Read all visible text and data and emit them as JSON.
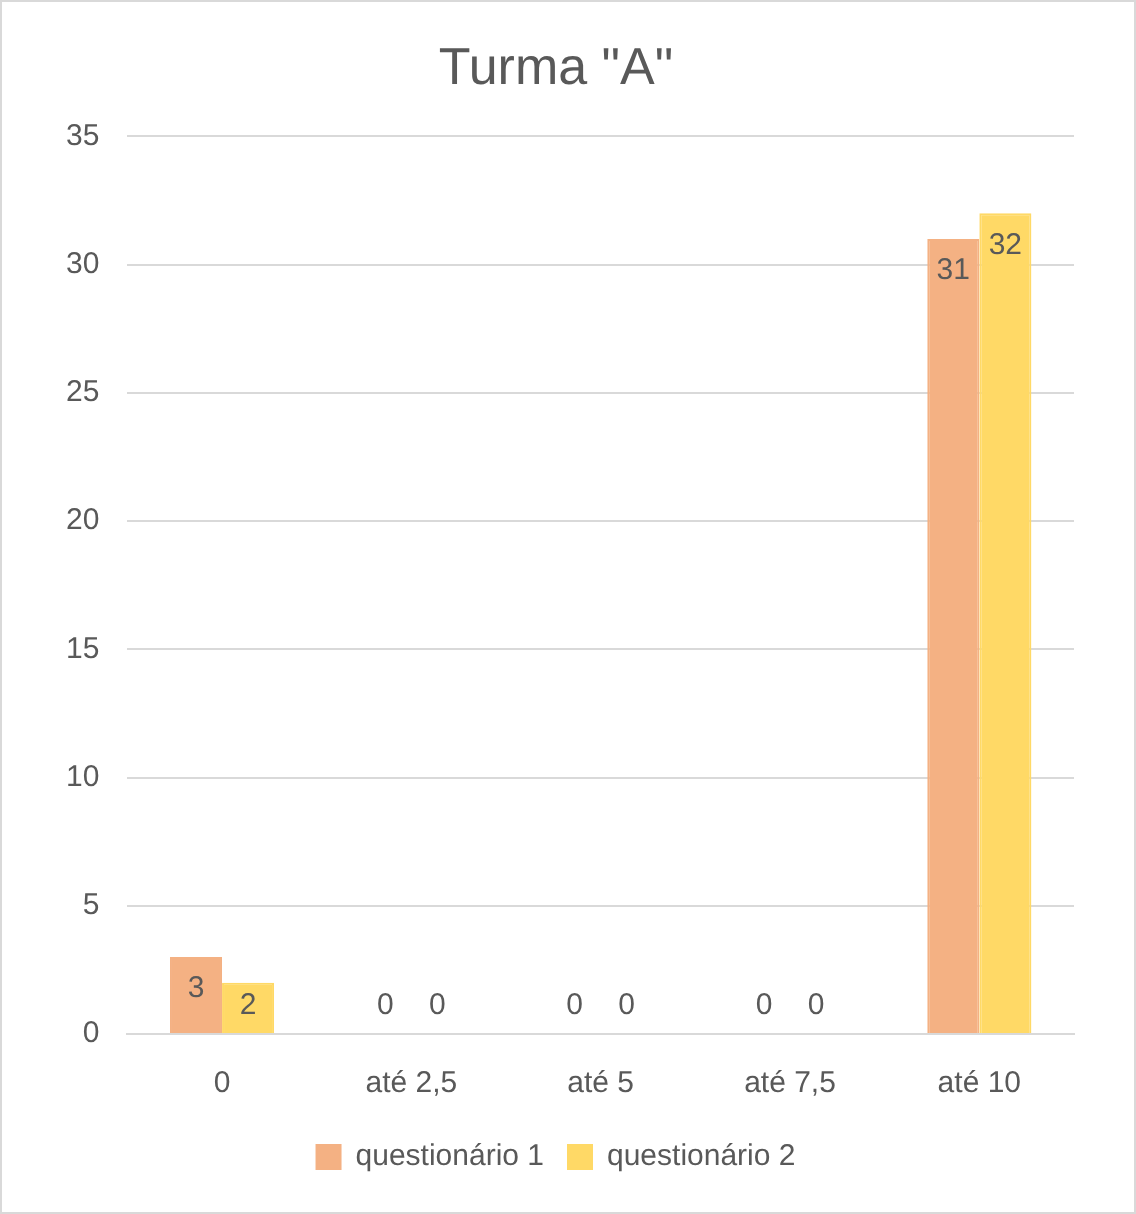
{
  "chart_data": {
    "type": "bar",
    "title": "Turma \"A\"",
    "categories": [
      "0",
      "até 2,5",
      "até 5",
      "até 7,5",
      "até 10"
    ],
    "series": [
      {
        "name": "questionário 1",
        "color": "#f4b183",
        "values": [
          3,
          0,
          0,
          0,
          31
        ]
      },
      {
        "name": "questionário 2",
        "color": "#ffd966",
        "values": [
          2,
          0,
          0,
          0,
          32
        ]
      }
    ],
    "ylim": [
      0,
      35
    ],
    "yticks": [
      0,
      5,
      10,
      15,
      20,
      25,
      30,
      35
    ],
    "grid": "y",
    "legend": "bottom",
    "data_labels": true
  }
}
